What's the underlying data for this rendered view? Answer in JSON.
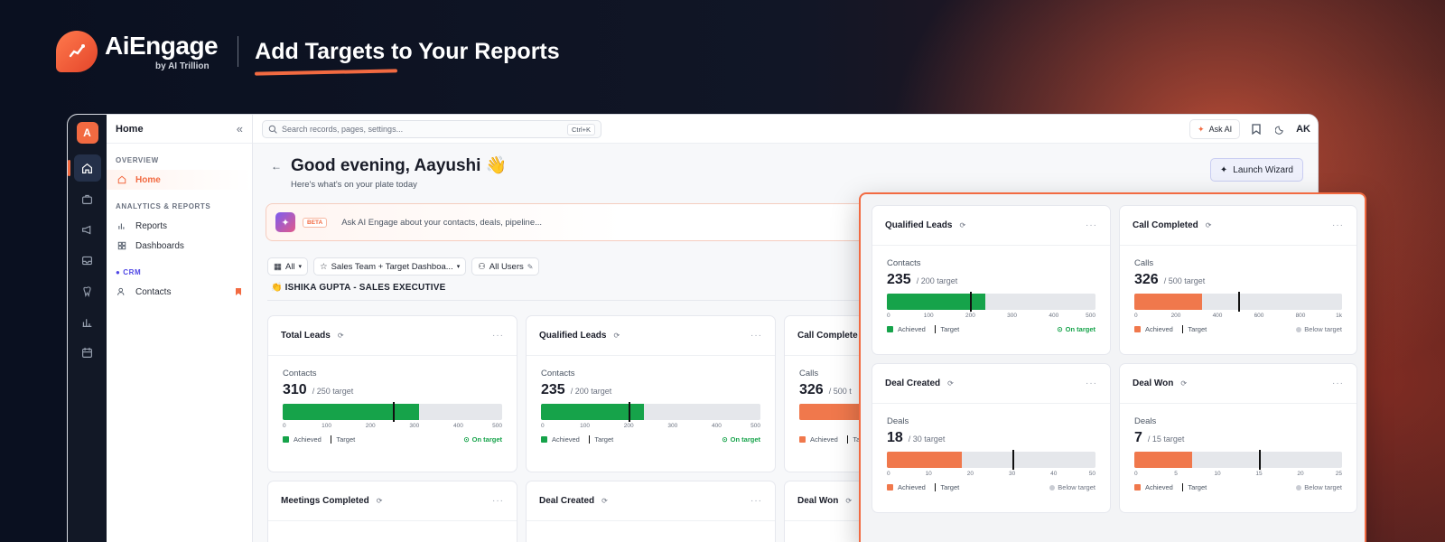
{
  "brand": {
    "name": "AiEngage",
    "by": "by AI Trillion",
    "headline": "Add Targets to Your Reports"
  },
  "rail": {
    "logo": "A",
    "items": [
      "home-icon",
      "briefcase-icon",
      "megaphone-icon",
      "inbox-icon",
      "tooth-icon",
      "bar-chart-icon",
      "calendar-icon"
    ]
  },
  "sidebar": {
    "title": "Home",
    "collapse": "«",
    "sections": {
      "overview": "OVERVIEW",
      "analytics": "ANALYTICS & REPORTS",
      "crm": "CRM"
    },
    "items": {
      "home": "Home",
      "reports": "Reports",
      "dashboards": "Dashboards",
      "contacts": "Contacts"
    }
  },
  "topbar": {
    "search_placeholder": "Search records, pages, settings...",
    "shortcut": "Ctrl+K",
    "ask_ai": "Ask AI",
    "avatar": "AK"
  },
  "greeting": {
    "title": "Good evening, Aayushi 👋",
    "subtitle": "Here's what's on your plate today",
    "wizard": "Launch Wizard"
  },
  "askbar": {
    "beta": "BETA",
    "placeholder": "Ask AI Engage about your contacts, deals, pipeline..."
  },
  "filters": {
    "all": "All",
    "dashboard": "Sales Team + Target Dashboa...",
    "users": "All Users"
  },
  "section_user": "👏 ISHIKA GUPTA - SALES EXECUTIVE",
  "legend": {
    "achieved": "Achieved",
    "target": "Target",
    "on_target": "On target",
    "below_target": "Below target"
  },
  "colors": {
    "accent": "#f26a41",
    "green": "#16a34a",
    "orange": "#f0784c"
  },
  "background_cards": [
    {
      "title": "Total Leads",
      "label": "Contacts",
      "value": "310",
      "target_text": "/ 250 target",
      "ticks": [
        "0",
        "100",
        "200",
        "300",
        "400",
        "500"
      ],
      "max": 500,
      "achieved": 310,
      "target": 250,
      "color": "green",
      "status": "on"
    },
    {
      "title": "Qualified Leads",
      "label": "Contacts",
      "value": "235",
      "target_text": "/ 200 target",
      "ticks": [
        "0",
        "100",
        "200",
        "300",
        "400",
        "500"
      ],
      "max": 500,
      "achieved": 235,
      "target": 200,
      "color": "green",
      "status": "on"
    },
    {
      "title": "Call Complete",
      "label": "Calls",
      "value": "326",
      "target_text": "/ 500 t",
      "ticks": [],
      "max": 1000,
      "achieved": 326,
      "target": 500,
      "color": "orange",
      "status": "none"
    },
    {
      "title": "Meetings Completed"
    },
    {
      "title": "Deal Created"
    },
    {
      "title": "Deal Won"
    }
  ],
  "overlay_cards": [
    {
      "title": "Qualified Leads",
      "label": "Contacts",
      "value": "235",
      "target_text": "/ 200 target",
      "ticks": [
        "0",
        "100",
        "200",
        "300",
        "400",
        "500"
      ],
      "max": 500,
      "achieved": 235,
      "target": 200,
      "color": "green",
      "status": "on"
    },
    {
      "title": "Call Completed",
      "label": "Calls",
      "value": "326",
      "target_text": "/ 500 target",
      "ticks": [
        "0",
        "200",
        "400",
        "600",
        "800",
        "1k"
      ],
      "max": 1000,
      "achieved": 326,
      "target": 500,
      "color": "orange",
      "status": "below"
    },
    {
      "title": "Deal Created",
      "label": "Deals",
      "value": "18",
      "target_text": "/ 30 target",
      "ticks": [
        "0",
        "10",
        "20",
        "30",
        "40",
        "50"
      ],
      "max": 50,
      "achieved": 18,
      "target": 30,
      "color": "orange",
      "status": "below"
    },
    {
      "title": "Deal Won",
      "label": "Deals",
      "value": "7",
      "target_text": "/ 15 target",
      "ticks": [
        "0",
        "5",
        "10",
        "15",
        "20",
        "25"
      ],
      "max": 25,
      "achieved": 7,
      "target": 15,
      "color": "orange",
      "status": "below"
    }
  ]
}
